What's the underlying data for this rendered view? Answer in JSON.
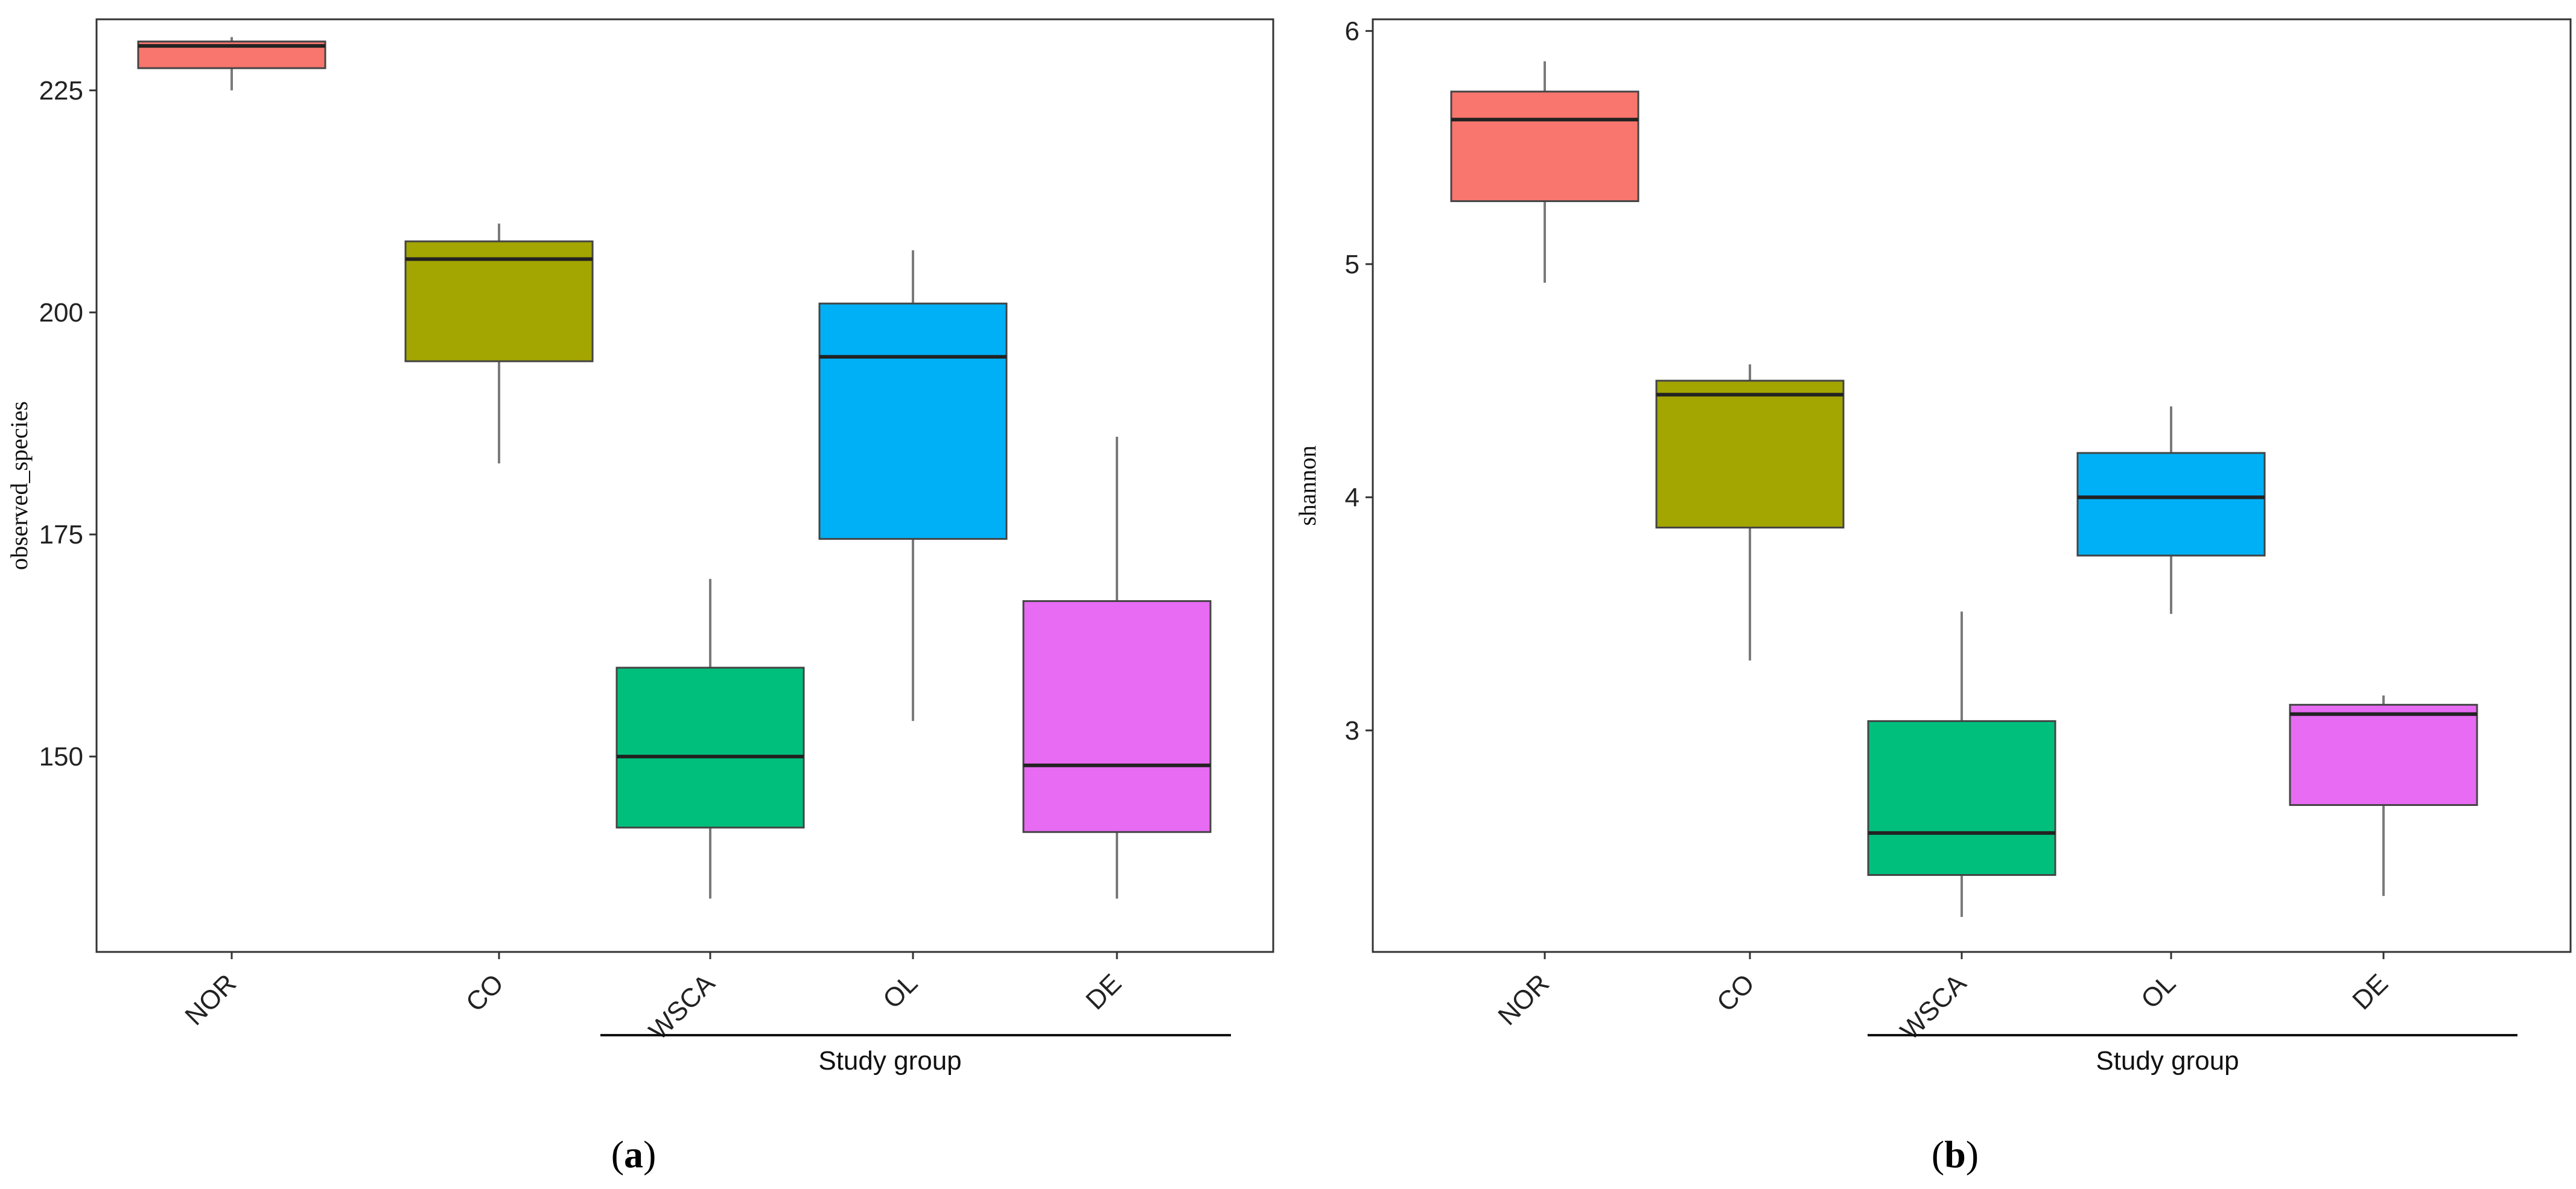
{
  "chart_data": [
    {
      "type": "box",
      "panel_label": "(a)",
      "ylabel": "observed_species",
      "xlabel": "",
      "ylim": [
        128,
        233
      ],
      "yticks": [
        150,
        175,
        200,
        225
      ],
      "group_label": "Study group",
      "categories": [
        "NOR",
        "CO",
        "WSCA",
        "OL",
        "DE"
      ],
      "colors": [
        "#F8766D",
        "#A3A500",
        "#00BF7D",
        "#00B0F6",
        "#E76BF3"
      ],
      "boxes": [
        {
          "category": "NOR",
          "whisker_low": 225,
          "q1": 227.5,
          "median": 230,
          "q3": 230.5,
          "whisker_high": 231
        },
        {
          "category": "CO",
          "whisker_low": 183,
          "q1": 194.5,
          "median": 206,
          "q3": 208,
          "whisker_high": 210
        },
        {
          "category": "WSCA",
          "whisker_low": 134,
          "q1": 142,
          "median": 150,
          "q3": 160,
          "whisker_high": 170
        },
        {
          "category": "OL",
          "whisker_low": 154,
          "q1": 174.5,
          "median": 195,
          "q3": 201,
          "whisker_high": 207
        },
        {
          "category": "DE",
          "whisker_low": 134,
          "q1": 141.5,
          "median": 149,
          "q3": 167.5,
          "whisker_high": 186
        }
      ]
    },
    {
      "type": "box",
      "panel_label": "(b)",
      "ylabel": "shannon",
      "xlabel": "",
      "ylim": [
        2.05,
        6.05
      ],
      "yticks": [
        3,
        4,
        5,
        6
      ],
      "group_label": "Study group",
      "categories": [
        "NOR",
        "CO",
        "WSCA",
        "OL",
        "DE"
      ],
      "colors": [
        "#F8766D",
        "#A3A500",
        "#00BF7D",
        "#00B0F6",
        "#E76BF3"
      ],
      "boxes": [
        {
          "category": "NOR",
          "whisker_low": 4.92,
          "q1": 5.27,
          "median": 5.62,
          "q3": 5.74,
          "whisker_high": 5.87
        },
        {
          "category": "CO",
          "whisker_low": 3.3,
          "q1": 3.87,
          "median": 4.44,
          "q3": 4.5,
          "whisker_high": 4.57
        },
        {
          "category": "WSCA",
          "whisker_low": 2.2,
          "q1": 2.38,
          "median": 2.56,
          "q3": 3.04,
          "whisker_high": 3.51
        },
        {
          "category": "OL",
          "whisker_low": 3.5,
          "q1": 3.75,
          "median": 4.0,
          "q3": 4.19,
          "whisker_high": 4.39
        },
        {
          "category": "DE",
          "whisker_low": 2.29,
          "q1": 2.68,
          "median": 3.07,
          "q3": 3.11,
          "whisker_high": 3.15
        }
      ]
    }
  ]
}
